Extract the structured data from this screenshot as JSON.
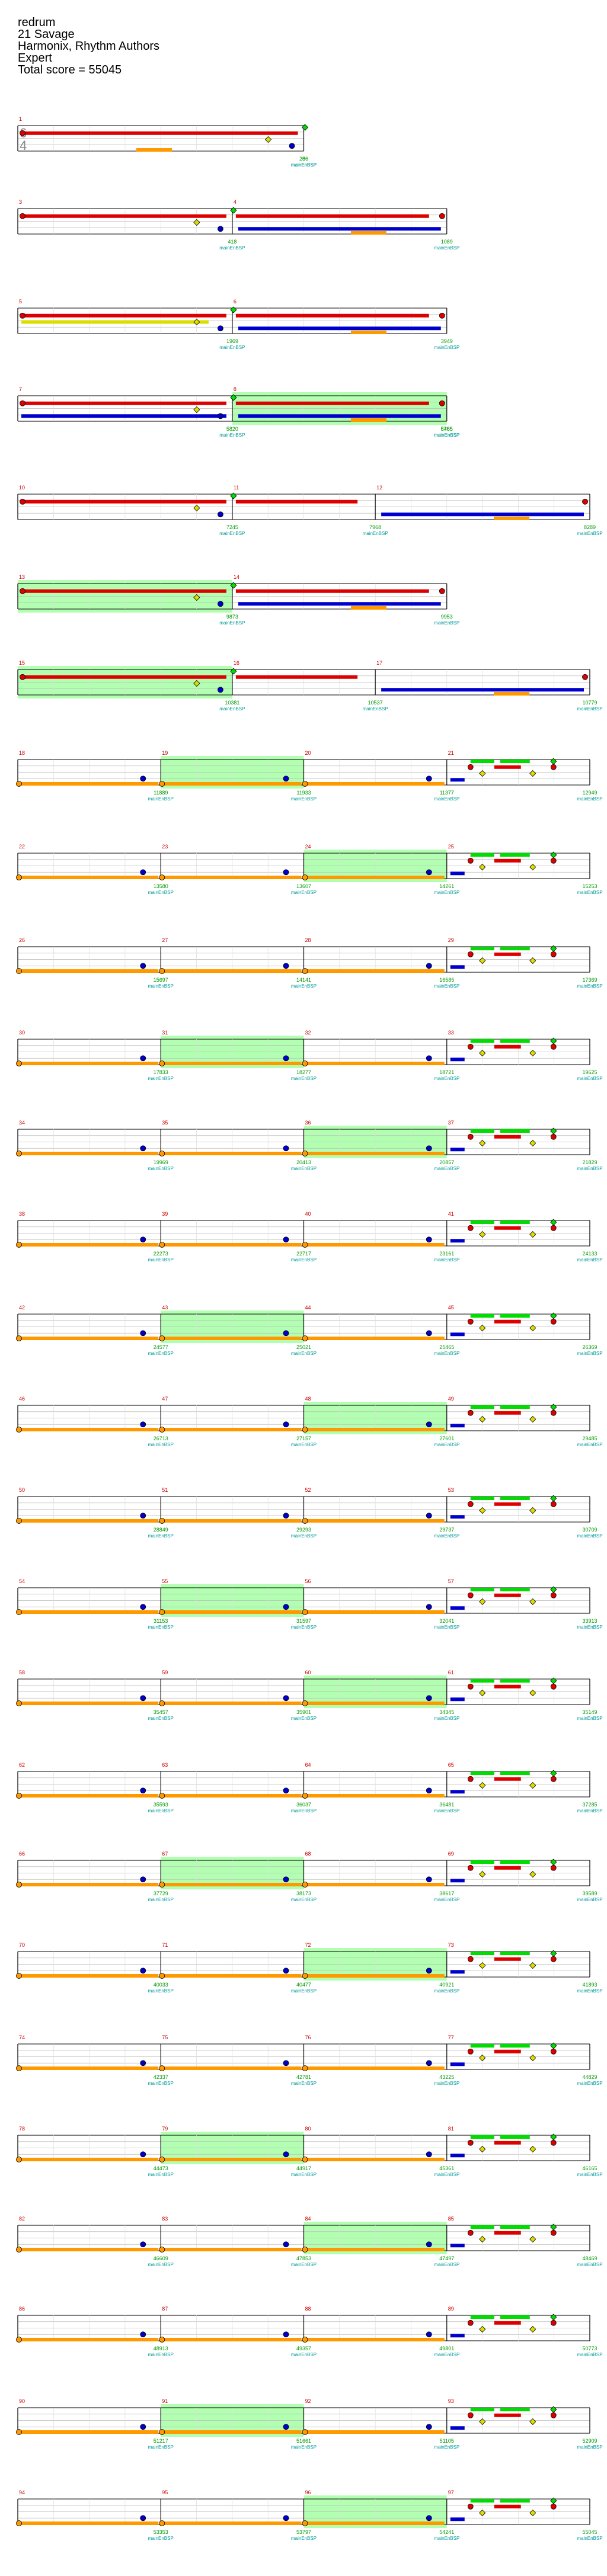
{
  "song": {
    "title": "redrum",
    "artist": "21 Savage",
    "charter": "Harmonix, Rhythm Authors",
    "difficulty": "Expert",
    "total_score_label": "Total score = 55045"
  },
  "time_signature": {
    "numerator": "6",
    "denominator": "4"
  },
  "colors": {
    "green": "#00dd00",
    "red": "#dd0000",
    "yellow": "#dddd00",
    "blue": "#0000cc",
    "orange": "#ff9900",
    "measure_number": "#cc0000",
    "score": "#009900",
    "tempo": "#999999",
    "sp_fill": "#aaffaa",
    "marker": "#009999"
  },
  "marker_label": "mainEnBSP",
  "systems": [
    {
      "measures": [
        "1"
      ],
      "scores": [
        "0",
        "286"
      ]
    },
    {
      "measures": [
        "3",
        "4"
      ],
      "scores": [
        "418",
        "1089"
      ]
    },
    {
      "measures": [
        "5",
        "6"
      ],
      "scores": [
        "1969",
        "3949"
      ]
    },
    {
      "measures": [
        "7",
        "8"
      ],
      "scores": [
        "5820",
        "5765",
        "6485"
      ]
    },
    {
      "measures": [
        "10",
        "11",
        "12"
      ],
      "scores": [
        "7245",
        "7968",
        "8289"
      ]
    },
    {
      "measures": [
        "13",
        "14"
      ],
      "scores": [
        "9873",
        "9953"
      ]
    },
    {
      "measures": [
        "15",
        "16",
        "17"
      ],
      "scores": [
        "10381",
        "10537",
        "10779"
      ]
    },
    {
      "measures": [
        "18",
        "19",
        "20",
        "21"
      ],
      "scores": [
        "11889",
        "11933",
        "11377",
        "12949"
      ]
    },
    {
      "measures": [
        "22",
        "23",
        "24",
        "25"
      ],
      "scores": [
        "13580",
        "13607",
        "14261",
        "15253"
      ]
    },
    {
      "measures": [
        "26",
        "27",
        "28",
        "29"
      ],
      "scores": [
        "15697",
        "14141",
        "16585",
        "17369"
      ]
    },
    {
      "measures": [
        "30",
        "31",
        "32",
        "33"
      ],
      "scores": [
        "17833",
        "18277",
        "18721",
        "19625"
      ]
    },
    {
      "measures": [
        "34",
        "35",
        "36",
        "37"
      ],
      "scores": [
        "19969",
        "20413",
        "20857",
        "21829"
      ]
    },
    {
      "measures": [
        "38",
        "39",
        "40",
        "41"
      ],
      "scores": [
        "22273",
        "22717",
        "23161",
        "24133"
      ]
    },
    {
      "measures": [
        "42",
        "43",
        "44",
        "45"
      ],
      "scores": [
        "24577",
        "25021",
        "25465",
        "26369"
      ]
    },
    {
      "measures": [
        "46",
        "47",
        "48",
        "49"
      ],
      "scores": [
        "26713",
        "27157",
        "27601",
        "29485"
      ]
    },
    {
      "measures": [
        "50",
        "51",
        "52",
        "53"
      ],
      "scores": [
        "28849",
        "29293",
        "29737",
        "30709"
      ]
    },
    {
      "measures": [
        "54",
        "55",
        "56",
        "57"
      ],
      "scores": [
        "31153",
        "31597",
        "32041",
        "33913"
      ]
    },
    {
      "measures": [
        "58",
        "59",
        "60",
        "61"
      ],
      "scores": [
        "35457",
        "35901",
        "34345",
        "35149"
      ]
    },
    {
      "measures": [
        "62",
        "63",
        "64",
        "65"
      ],
      "scores": [
        "35593",
        "36037",
        "36481",
        "37285"
      ]
    },
    {
      "measures": [
        "66",
        "67",
        "68",
        "69"
      ],
      "scores": [
        "37729",
        "38173",
        "38617",
        "39589"
      ]
    },
    {
      "measures": [
        "70",
        "71",
        "72",
        "73"
      ],
      "scores": [
        "40033",
        "40477",
        "40921",
        "41893"
      ]
    },
    {
      "measures": [
        "74",
        "75",
        "76",
        "77"
      ],
      "scores": [
        "42337",
        "42781",
        "43225",
        "44829"
      ]
    },
    {
      "measures": [
        "78",
        "79",
        "80",
        "81"
      ],
      "scores": [
        "44473",
        "44917",
        "45361",
        "46165"
      ]
    },
    {
      "measures": [
        "82",
        "83",
        "84",
        "85"
      ],
      "scores": [
        "46609",
        "47853",
        "47497",
        "48469"
      ]
    },
    {
      "measures": [
        "86",
        "87",
        "88",
        "89"
      ],
      "scores": [
        "48913",
        "49357",
        "49801",
        "50773"
      ]
    },
    {
      "measures": [
        "90",
        "91",
        "92",
        "93"
      ],
      "scores": [
        "51217",
        "51661",
        "51105",
        "52909"
      ]
    },
    {
      "measures": [
        "94",
        "95",
        "96",
        "97"
      ],
      "scores": [
        "53353",
        "53797",
        "54241",
        "55045"
      ]
    }
  ]
}
